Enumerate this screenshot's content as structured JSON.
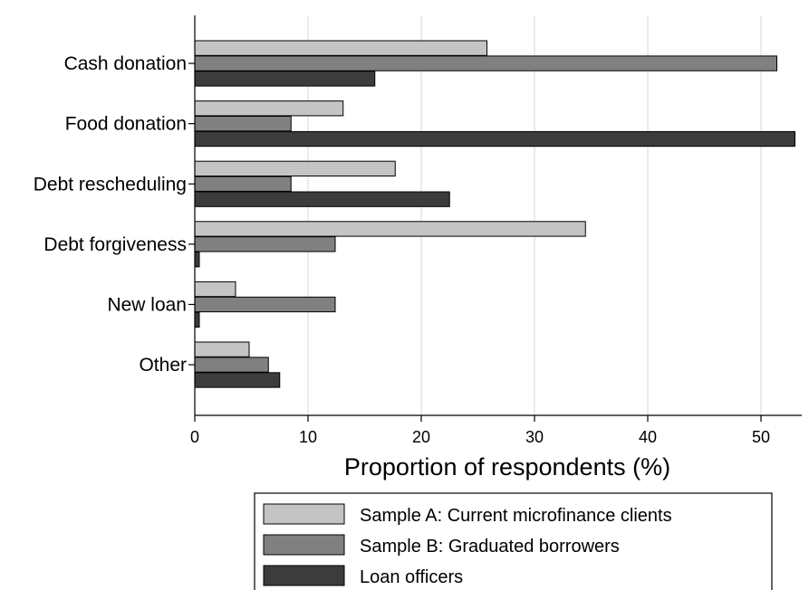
{
  "chart_data": {
    "type": "bar",
    "orientation": "horizontal",
    "categories": [
      "Cash donation",
      "Food donation",
      "Debt rescheduling",
      "Debt forgiveness",
      "New loan",
      "Other"
    ],
    "series": [
      {
        "name": "Sample A: Current microfinance clients",
        "color": "#c4c4c4",
        "values": [
          25.8,
          13.1,
          17.7,
          34.5,
          3.6,
          4.8
        ]
      },
      {
        "name": "Sample B: Graduated borrowers",
        "color": "#808080",
        "values": [
          51.4,
          8.5,
          8.5,
          12.4,
          12.4,
          6.5
        ]
      },
      {
        "name": "Loan officers",
        "color": "#3c3c3c",
        "values": [
          15.9,
          53.0,
          22.5,
          0.4,
          0.4,
          7.5
        ]
      }
    ],
    "xlabel": "Proportion of respondents (%)",
    "ylabel": "",
    "xlim": [
      0,
      53
    ],
    "xticks": [
      "0",
      "10",
      "20",
      "30",
      "40",
      "50"
    ],
    "grid": "vertical",
    "legend_position": "bottom"
  }
}
